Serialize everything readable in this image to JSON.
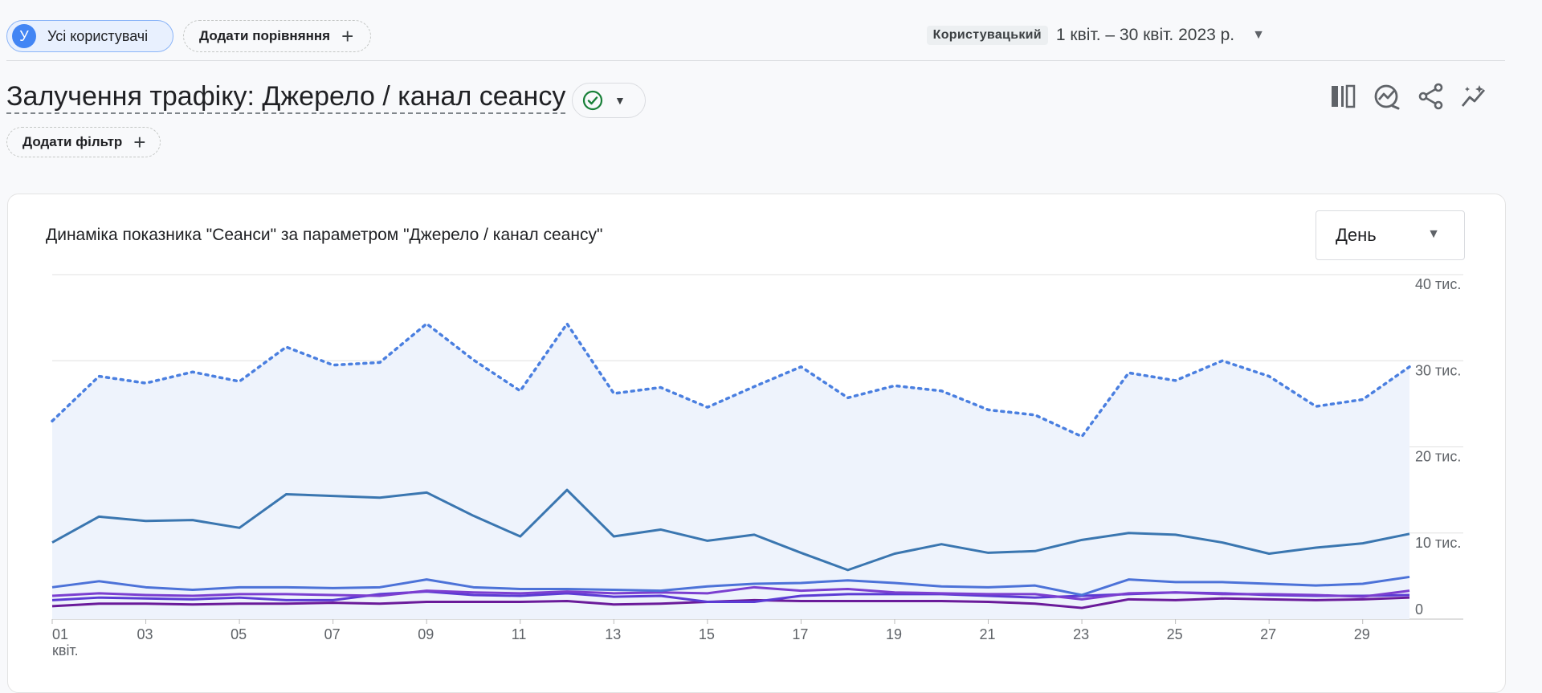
{
  "header": {
    "segment_chip": {
      "avatar_letter": "У",
      "label": "Усі користувачі"
    },
    "compare_chip": {
      "label": "Додати порівняння",
      "icon": "plus-icon"
    },
    "date_range": {
      "badge": "Користувацький",
      "value": "1 квіт. – 30 квіт. 2023 р.",
      "icon": "chevron-down-icon"
    }
  },
  "report": {
    "title": "Залучення трафіку: Джерело / канал сеансу",
    "status_icon": "check-circle-icon",
    "filter_chip": {
      "label": "Додати фільтр",
      "icon": "plus-icon"
    },
    "toolbar": [
      "customize-report-icon",
      "insights-icon",
      "share-icon",
      "compare-trends-icon"
    ]
  },
  "card": {
    "title": "Динаміка показника \"Сеанси\" за параметром \"Джерело / канал сеансу\"",
    "granularity": {
      "selected": "День"
    }
  },
  "colors": {
    "total": "#4a7fe0",
    "series": [
      "#3a76b0",
      "#4c72d8",
      "#7b3fd0",
      "#5b3bd4",
      "#6a1b9a"
    ],
    "area_fill": "#eef3fc",
    "grid": "#e0e0e0"
  },
  "chart_data": {
    "type": "line",
    "x_tick_labels": [
      "01",
      "03",
      "05",
      "07",
      "09",
      "11",
      "13",
      "15",
      "17",
      "19",
      "21",
      "23",
      "25",
      "27",
      "29"
    ],
    "x_sublabel": "квіт.",
    "y_tick_labels": [
      "0",
      "10 тис.",
      "20 тис.",
      "30 тис.",
      "40 тис."
    ],
    "ylim": [
      0,
      40000
    ],
    "x": [
      1,
      2,
      3,
      4,
      5,
      6,
      7,
      8,
      9,
      10,
      11,
      12,
      13,
      14,
      15,
      16,
      17,
      18,
      19,
      20,
      21,
      22,
      23,
      24,
      25,
      26,
      27,
      28,
      29,
      30
    ],
    "total": [
      23000,
      28200,
      27400,
      28700,
      27600,
      31600,
      29500,
      29800,
      34300,
      30100,
      26500,
      34300,
      26200,
      26900,
      24600,
      27000,
      29300,
      25700,
      27100,
      26500,
      24300,
      23700,
      21200,
      28600,
      27700,
      30000,
      28200,
      24700,
      25500,
      29300
    ],
    "series": [
      {
        "values": [
          8900,
          11900,
          11400,
          11500,
          10600,
          14500,
          14300,
          14100,
          14700,
          12000,
          9600,
          15000,
          9600,
          10400,
          9100,
          9800,
          7700,
          5700,
          7600,
          8700,
          7700,
          7900,
          9200,
          10000,
          9800,
          8900,
          7600,
          8300,
          8800,
          9900
        ]
      },
      {
        "values": [
          3700,
          4400,
          3700,
          3400,
          3700,
          3700,
          3600,
          3700,
          4600,
          3700,
          3500,
          3500,
          3400,
          3300,
          3800,
          4100,
          4200,
          4500,
          4200,
          3800,
          3700,
          3900,
          2800,
          4600,
          4300,
          4300,
          4100,
          3900,
          4100,
          4900
        ]
      },
      {
        "values": [
          2700,
          3000,
          2800,
          2700,
          2900,
          2900,
          2800,
          2700,
          3300,
          3100,
          3000,
          3200,
          3000,
          3100,
          3000,
          3700,
          3300,
          3500,
          3100,
          3000,
          2900,
          2900,
          2300,
          3000,
          3100,
          2900,
          2900,
          2800,
          2600,
          3300
        ]
      },
      {
        "values": [
          2200,
          2500,
          2400,
          2300,
          2500,
          2200,
          2200,
          2900,
          3200,
          2800,
          2700,
          3000,
          2600,
          2700,
          2000,
          2000,
          2700,
          2900,
          2900,
          2900,
          2700,
          2500,
          2700,
          2900,
          3100,
          3000,
          2800,
          2700,
          2700,
          2800
        ]
      },
      {
        "values": [
          1500,
          1800,
          1800,
          1700,
          1800,
          1800,
          1900,
          1800,
          2000,
          2000,
          2000,
          2100,
          1700,
          1800,
          2000,
          2200,
          2100,
          2100,
          2100,
          2100,
          2000,
          1800,
          1300,
          2300,
          2200,
          2400,
          2300,
          2200,
          2300,
          2500
        ]
      }
    ],
    "legend": "none",
    "grid": true
  }
}
